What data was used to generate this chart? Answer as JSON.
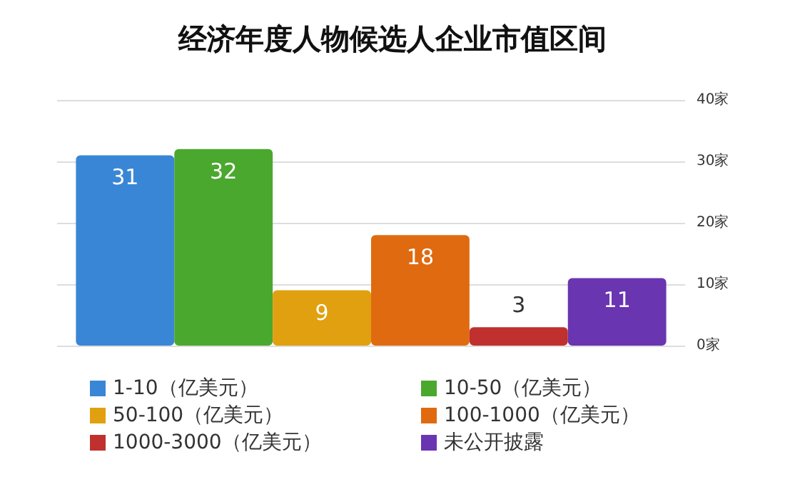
{
  "chart_data": {
    "type": "bar",
    "title": "经济年度人物候选人企业市值区间",
    "categories": [
      null
    ],
    "series": [
      {
        "name": "1-10（亿美元）",
        "color": "#3a86d6",
        "values": [
          31
        ]
      },
      {
        "name": "10-50（亿美元）",
        "color": "#4aa82e",
        "values": [
          32
        ]
      },
      {
        "name": "50-100（亿美元）",
        "color": "#e0a010",
        "values": [
          9
        ]
      },
      {
        "name": "100-1000（亿美元）",
        "color": "#e06a10",
        "values": [
          18
        ]
      },
      {
        "name": "1000-3000（亿美元）",
        "color": "#c0302e",
        "values": [
          3
        ]
      },
      {
        "name": "未公开披露",
        "color": "#6a35b0",
        "values": [
          11
        ]
      }
    ],
    "ylim": [
      0,
      40
    ],
    "yticks": [
      {
        "value": 0,
        "label": "0家"
      },
      {
        "value": 10,
        "label": "10家"
      },
      {
        "value": 20,
        "label": "20家"
      },
      {
        "value": 30,
        "label": "30家"
      },
      {
        "value": 40,
        "label": "40家"
      }
    ],
    "grid": "y",
    "legend": "bottom",
    "data_labels": true
  }
}
